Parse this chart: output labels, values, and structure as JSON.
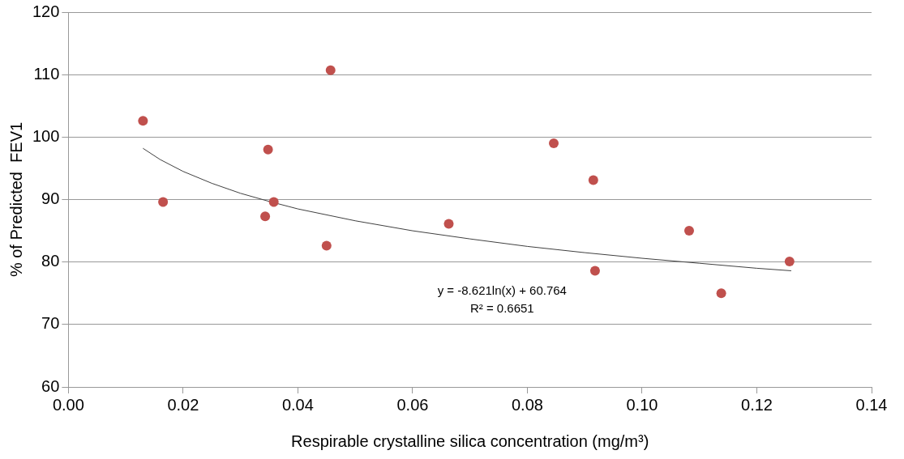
{
  "chart_data": {
    "type": "scatter",
    "xlabel": "Respirable crystalline silica concentration (mg/m³)",
    "ylabel": "% of Predicted  FEV1",
    "series": [
      {
        "type": "scatter",
        "color": "#c0504d",
        "x": [
          0.013,
          0.0165,
          0.0348,
          0.0343,
          0.0358,
          0.045,
          0.0663,
          0.0918,
          0.1082,
          0.1138,
          0.1257,
          0.0457,
          0.0846,
          0.0915
        ],
        "values": [
          102.6,
          89.6,
          98.0,
          87.3,
          89.6,
          82.6,
          86.1,
          78.6,
          85.0,
          75.0,
          80.1,
          110.7,
          99.0,
          93.1
        ]
      },
      {
        "type": "line",
        "color": "#404040",
        "x": [
          0.013,
          0.016,
          0.02,
          0.025,
          0.03,
          0.035,
          0.04,
          0.05,
          0.06,
          0.07,
          0.08,
          0.09,
          0.1,
          0.11,
          0.12,
          0.126
        ],
        "values": [
          98.2,
          96.4,
          94.5,
          92.6,
          91.0,
          89.7,
          88.5,
          86.6,
          85.0,
          83.7,
          82.5,
          81.5,
          80.6,
          79.8,
          79.0,
          78.6
        ]
      }
    ],
    "xlim": [
      0,
      0.14
    ],
    "xticks": [
      {
        "value": 0,
        "label": "0.00"
      },
      {
        "value": 0.02,
        "label": "0.02"
      },
      {
        "value": 0.04,
        "label": "0.04"
      },
      {
        "value": 0.06,
        "label": "0.06"
      },
      {
        "value": 0.08,
        "label": "0.08"
      },
      {
        "value": 0.1,
        "label": "0.10"
      },
      {
        "value": 0.12,
        "label": "0.12"
      },
      {
        "value": 0.14,
        "label": "0.14"
      }
    ],
    "ylim": [
      60,
      120
    ],
    "yticks": [
      60,
      70,
      80,
      90,
      100,
      110,
      120
    ],
    "grid": "y",
    "legend": false,
    "annotations": [
      "y = -8.621ln(x) + 60.764",
      "R² = 0.6651"
    ]
  }
}
